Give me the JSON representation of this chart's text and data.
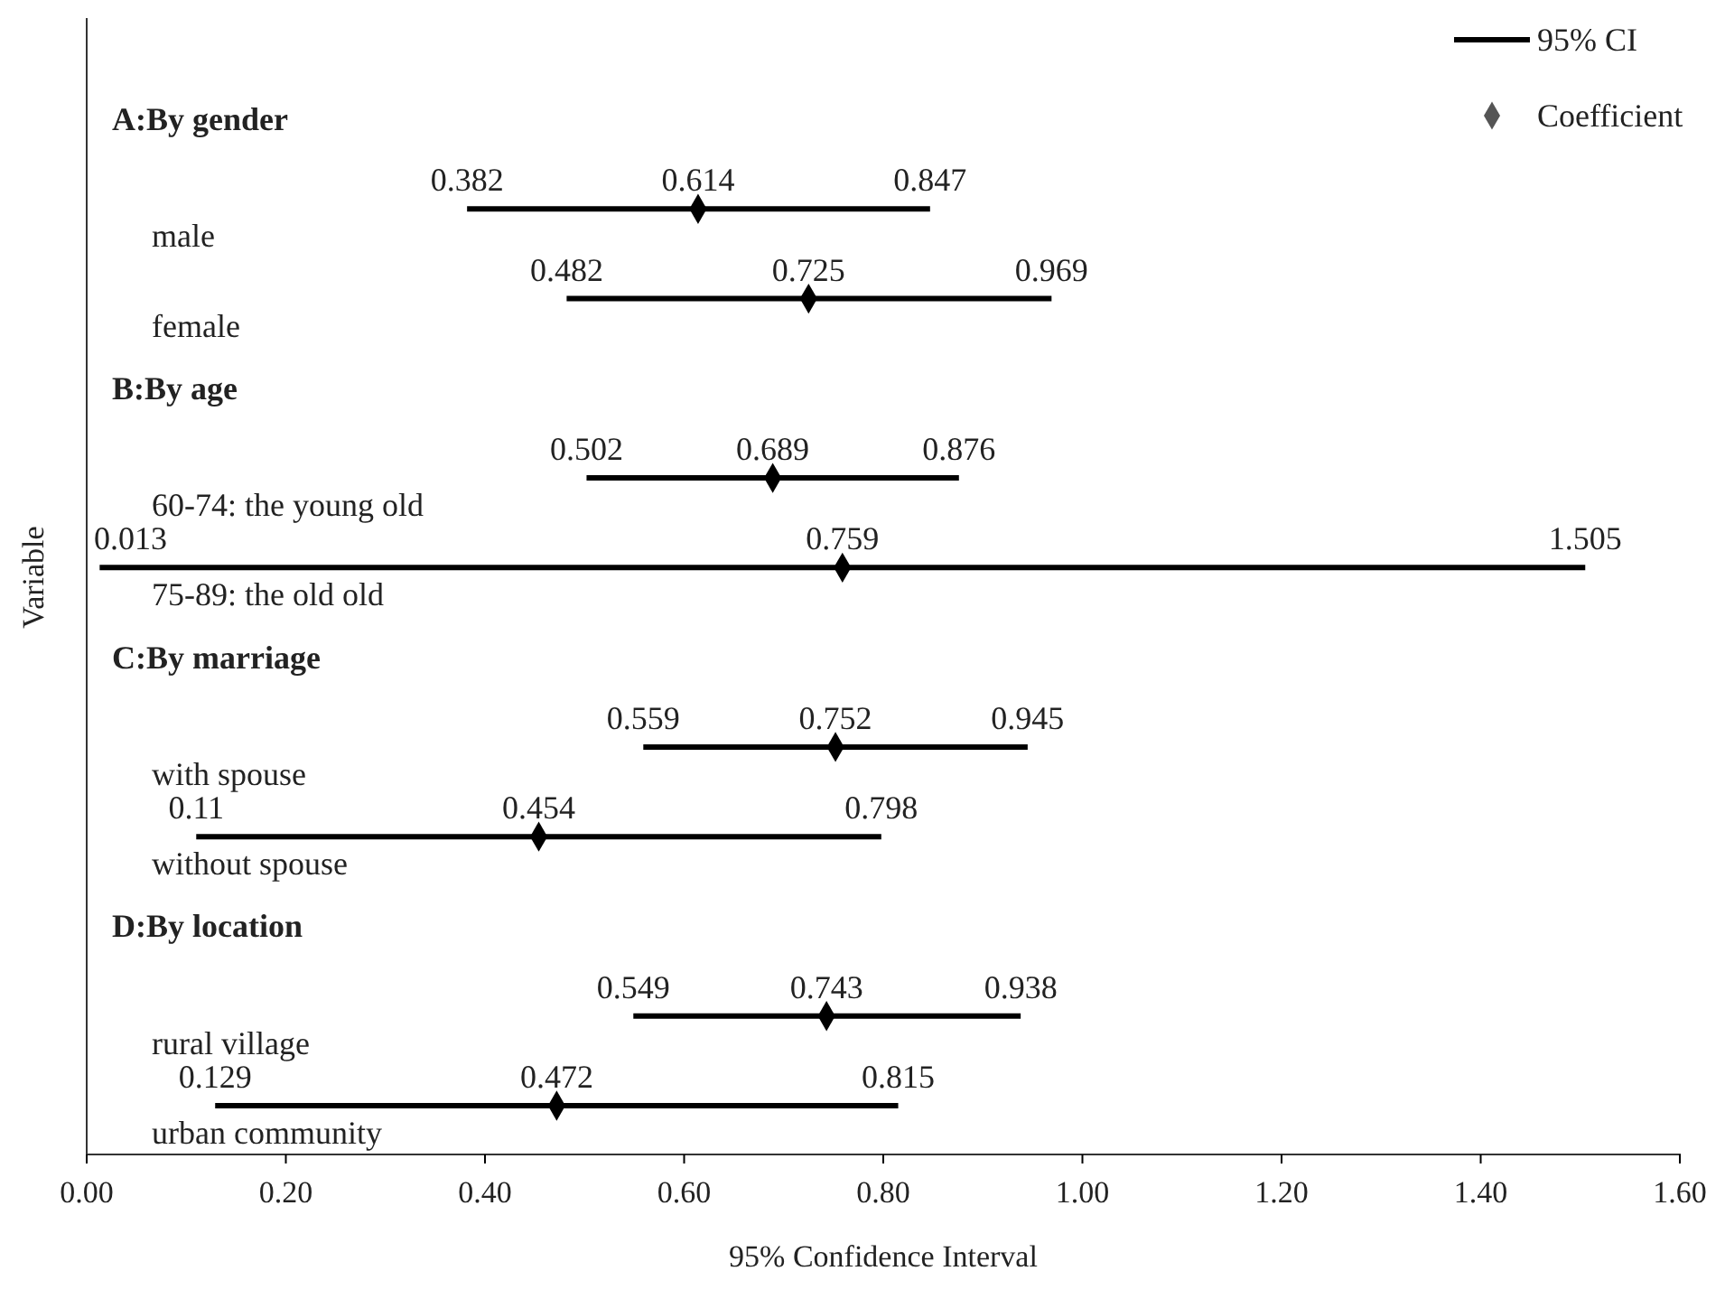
{
  "chart_data": {
    "type": "scatter",
    "orientation": "horizontal",
    "xlabel": "95% Confidence Interval",
    "ylabel": "Variable",
    "categories": [
      "A:By gender",
      "male",
      "female",
      "B:By age",
      "60-74: the young old",
      "75-89: the old old",
      "C:By marriage",
      "with spouse",
      "without spouse",
      "D:By location",
      "rural village",
      "urban community"
    ],
    "series": [
      {
        "name": "Coefficient",
        "color": "#000000",
        "marker": "diamond",
        "values": [
          null,
          0.614,
          0.725,
          null,
          0.689,
          0.759,
          null,
          0.752,
          0.454,
          null,
          0.743,
          0.472
        ],
        "errors": [
          null,
          [
            0.382,
            0.847
          ],
          [
            0.482,
            0.969
          ],
          null,
          [
            0.502,
            0.876
          ],
          [
            0.013,
            1.505
          ],
          null,
          [
            0.559,
            0.945
          ],
          [
            0.11,
            0.798
          ],
          null,
          [
            0.549,
            0.938
          ],
          [
            0.129,
            0.815
          ]
        ]
      }
    ],
    "annotations": [
      "95% CI",
      "0.382",
      "0.847",
      "0.482",
      "0.969",
      "0.502",
      "0.876",
      "0.013",
      "1.505",
      "0.559",
      "0.945",
      "0.11",
      "0.798",
      "0.549",
      "0.938",
      "0.129",
      "0.815"
    ],
    "data_labels": true,
    "xlim": [
      0,
      1.6
    ],
    "xticks": [
      {
        "value": 0,
        "label": "0.00"
      },
      {
        "value": 0.2,
        "label": "0.20"
      },
      {
        "value": 0.4,
        "label": "0.40"
      },
      {
        "value": 0.6,
        "label": "0.60"
      },
      {
        "value": 0.8,
        "label": "0.80"
      },
      {
        "value": 1,
        "label": "1.00"
      },
      {
        "value": 1.2,
        "label": "1.20"
      },
      {
        "value": 1.4,
        "label": "1.40"
      },
      {
        "value": 1.6,
        "label": "1.60"
      }
    ],
    "grid": false,
    "legend": "top right",
    "line_style": "solid"
  }
}
